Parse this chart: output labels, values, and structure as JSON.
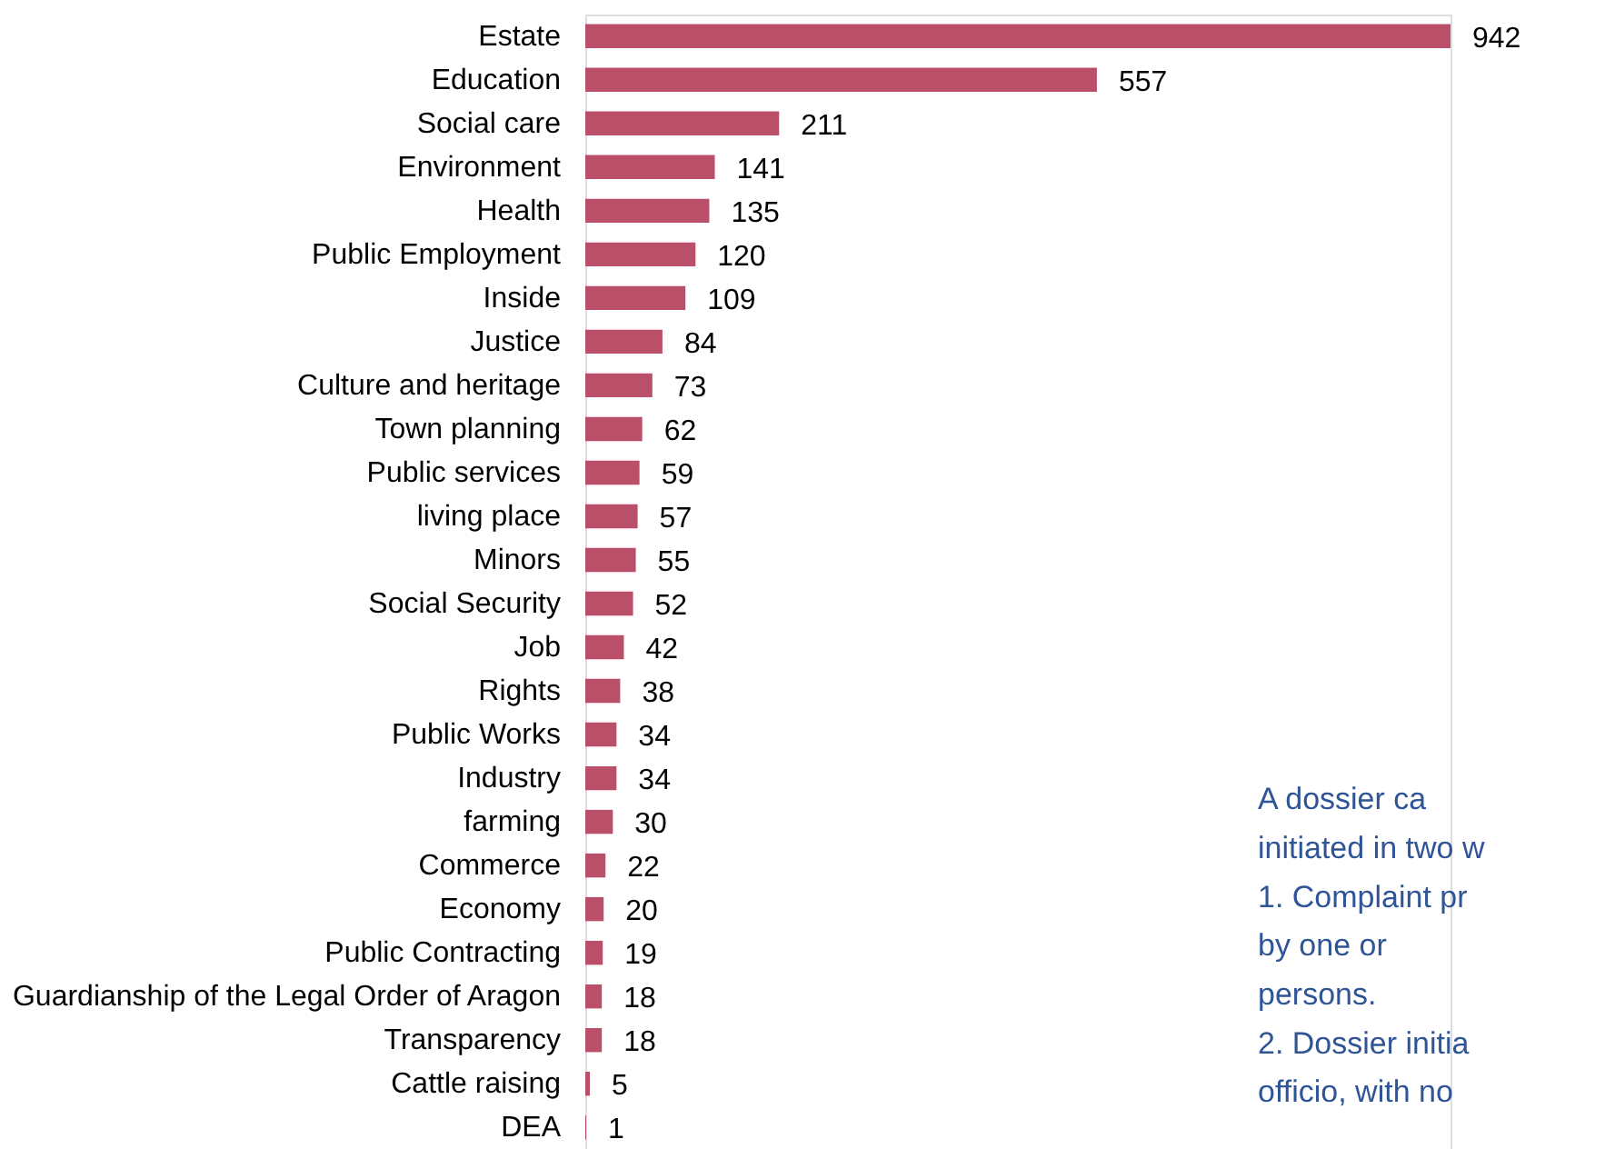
{
  "chart_data": {
    "type": "bar",
    "orientation": "horizontal",
    "data_labels": true,
    "color": "#b94f69",
    "categories": [
      "Estate",
      "Education",
      "Social care",
      "Environment",
      "Health",
      "Public Employment",
      "Inside",
      "Justice",
      "Culture and heritage",
      "Town planning",
      "Public services",
      "living place",
      "Minors",
      "Social Security",
      "Job",
      "Rights",
      "Public Works",
      "Industry",
      "farming",
      "Commerce",
      "Economy",
      "Public Contracting",
      "Guardianship of the Legal Order of Aragon",
      "Transparency",
      "Cattle raising",
      "DEA"
    ],
    "values": [
      942,
      557,
      211,
      141,
      135,
      120,
      109,
      84,
      73,
      62,
      59,
      57,
      55,
      52,
      42,
      38,
      34,
      34,
      30,
      22,
      20,
      19,
      18,
      18,
      5,
      1
    ],
    "annotations": [
      "A dossier ca",
      "initiated in two w",
      "1. Complaint pr",
      "by one or",
      "persons.",
      "2. Dossier initia",
      "officio, with no"
    ],
    "grid": false
  }
}
